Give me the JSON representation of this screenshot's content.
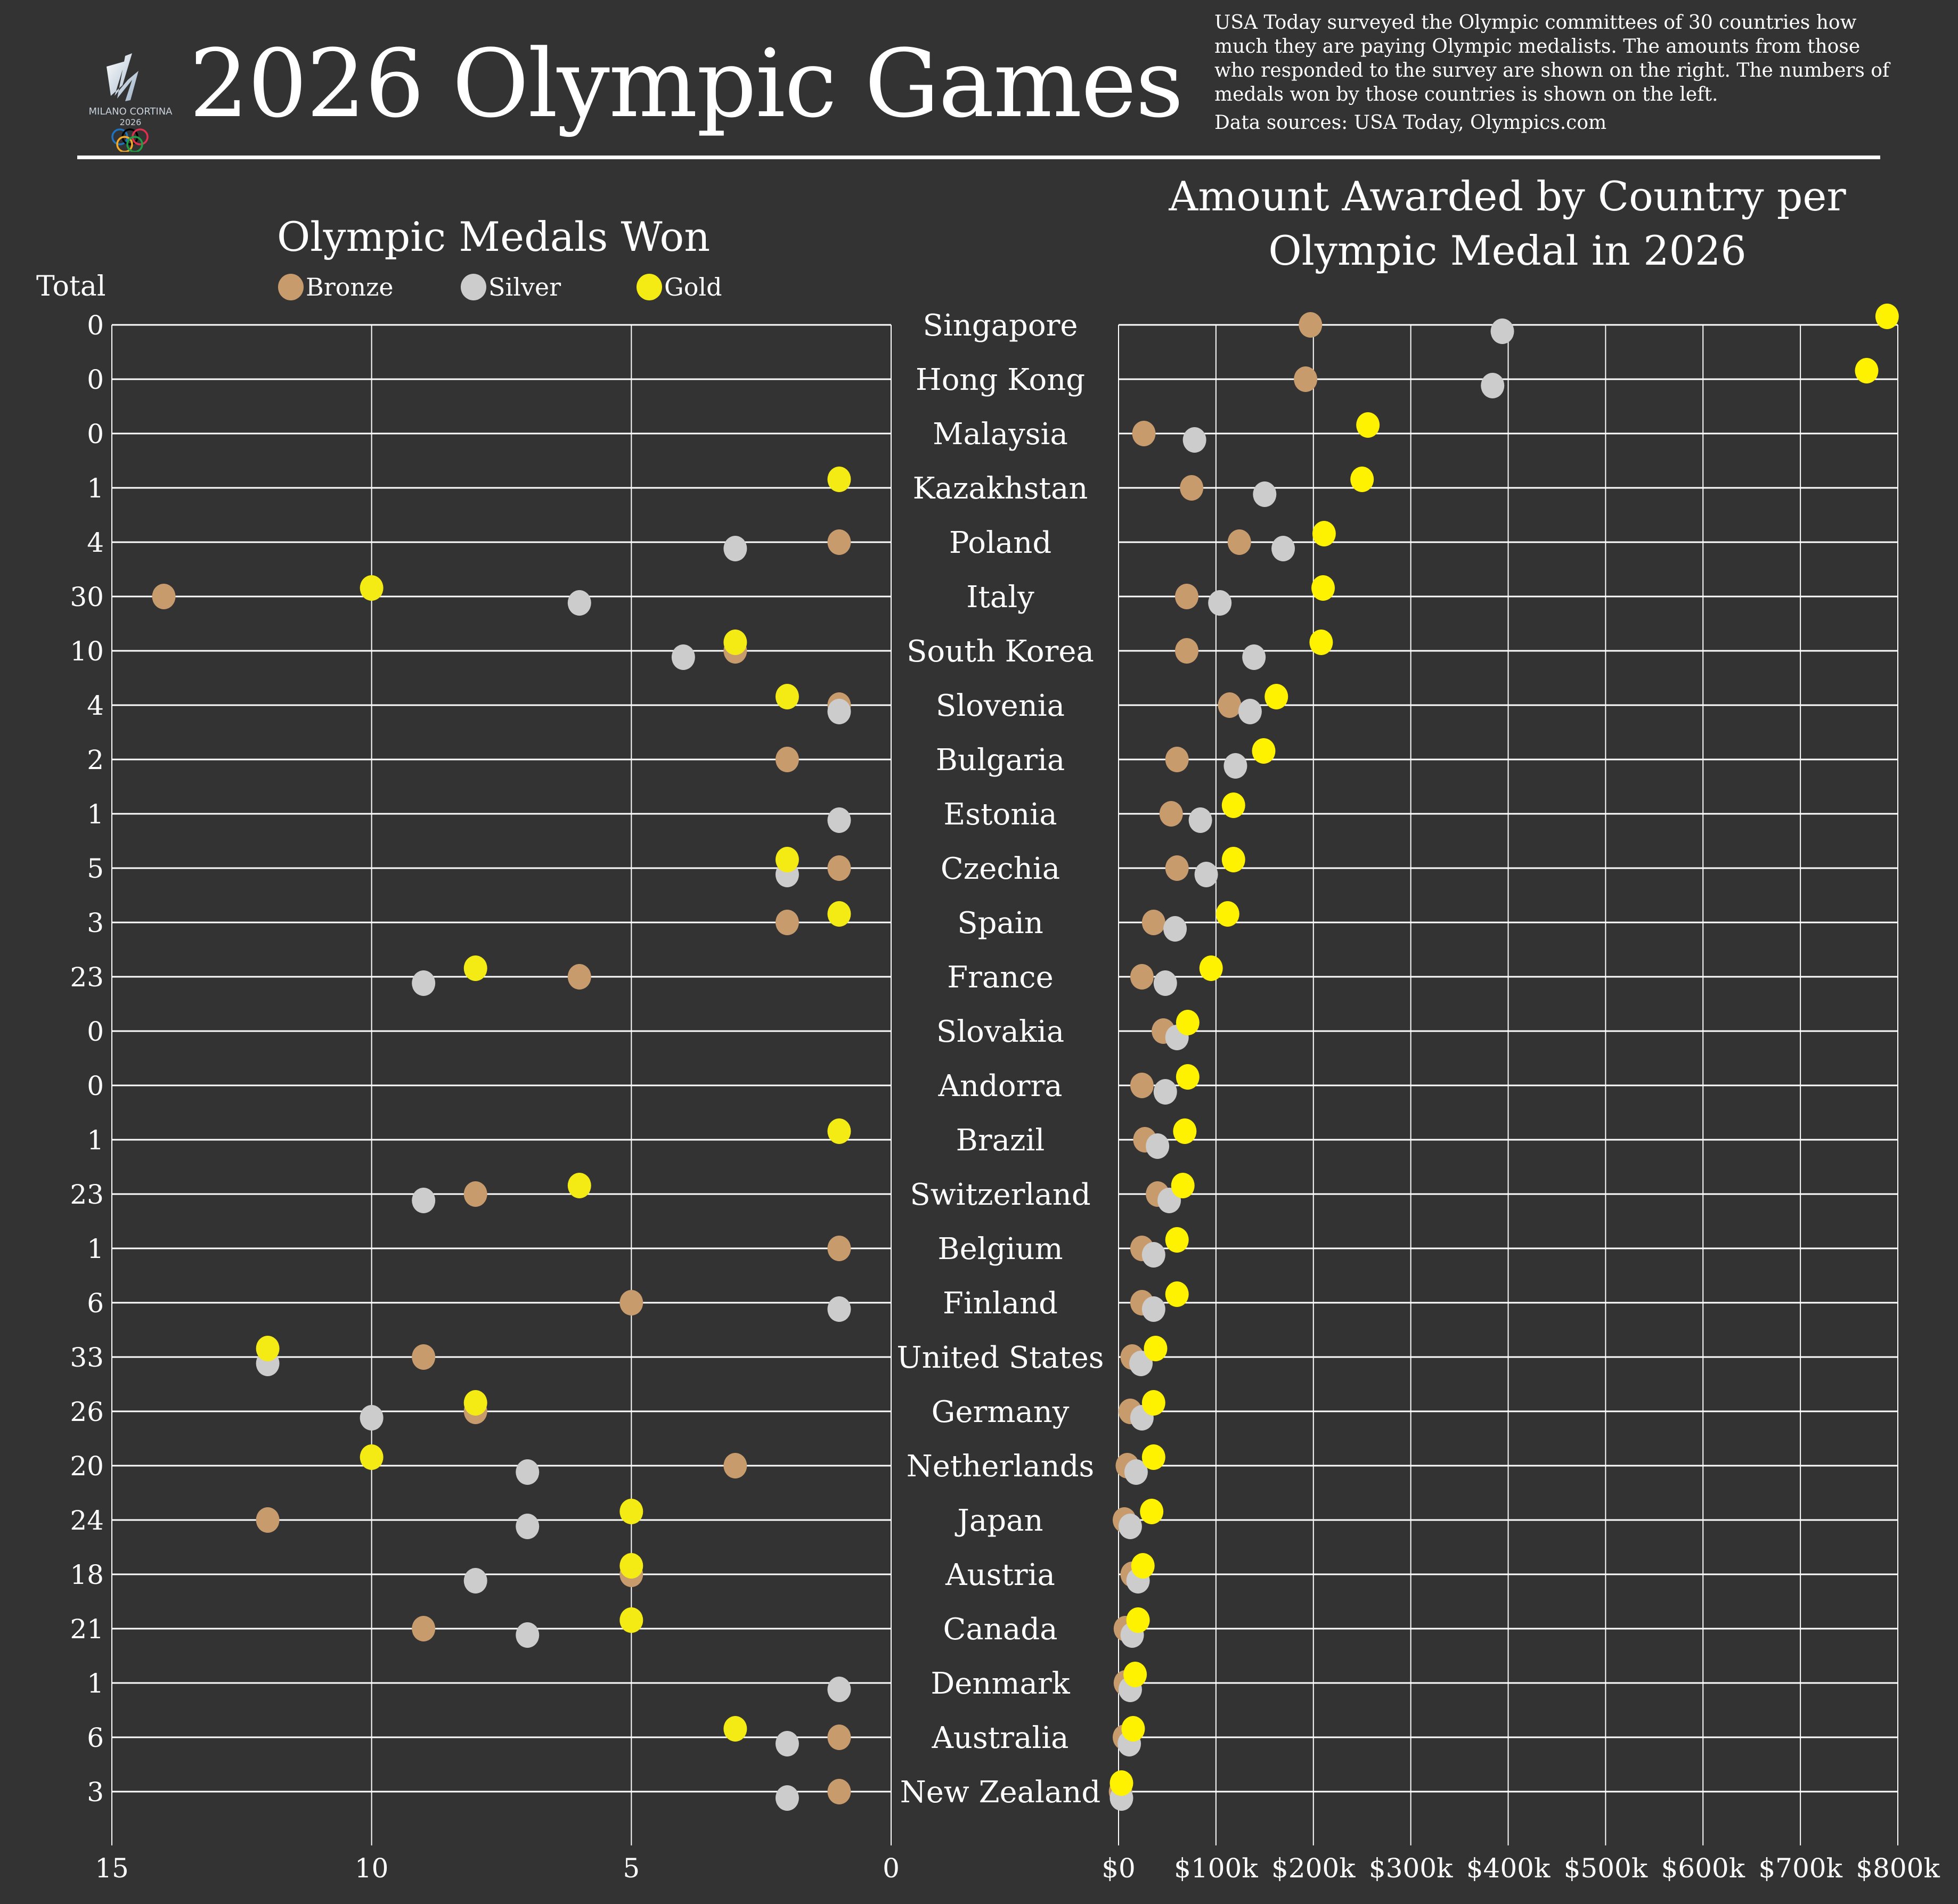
{
  "header": {
    "title": "2026 Olympic Games",
    "logo": {
      "text_line1": "MILANO CORTINA",
      "text_line2": "2026",
      "rings_colors": [
        "#1e73be",
        "#000000",
        "#e0304e",
        "#f7a823",
        "#1da045"
      ]
    },
    "description": "USA Today surveyed the Olympic committees of 30 countries how much they are paying Olympic medalists. The amounts from those who responded to the survey are shown on the right. The numbers of medals won by those countries is shown on the left.",
    "source": "Data sources: USA Today, Olympics.com"
  },
  "colors": {
    "background": "#333333",
    "bronze": "#c89b6d",
    "silver": "#cccccc",
    "gold": "#f5eb14",
    "gold_right": "#fff200",
    "grid": "#ffffff"
  },
  "legend": {
    "total_label": "Total",
    "items": [
      {
        "label": "Bronze",
        "color": "#c89b6d"
      },
      {
        "label": "Silver",
        "color": "#cccccc"
      },
      {
        "label": "Gold",
        "color": "#f5eb14"
      }
    ]
  },
  "chart_data": [
    {
      "type": "scatter",
      "title": "Olympic Medals Won",
      "xlabel": "",
      "ylabel": "Total",
      "x_reversed": true,
      "xlim": [
        15,
        0
      ],
      "xticks": [
        "15",
        "10",
        "5",
        "0"
      ],
      "grid": true,
      "legend_position": "top",
      "categories": [
        "Singapore",
        "Hong Kong",
        "Malaysia",
        "Kazakhstan",
        "Poland",
        "Italy",
        "South Korea",
        "Slovenia",
        "Bulgaria",
        "Estonia",
        "Czechia",
        "Spain",
        "France",
        "Slovakia",
        "Andorra",
        "Brazil",
        "Switzerland",
        "Belgium",
        "Finland",
        "United States",
        "Germany",
        "Netherlands",
        "Japan",
        "Austria",
        "Canada",
        "Denmark",
        "Australia",
        "New Zealand"
      ],
      "totals": [
        0,
        0,
        0,
        1,
        4,
        30,
        10,
        4,
        2,
        1,
        5,
        3,
        23,
        0,
        0,
        1,
        23,
        1,
        6,
        33,
        26,
        20,
        24,
        18,
        21,
        1,
        6,
        3
      ],
      "series": [
        {
          "name": "Bronze",
          "values": [
            0,
            0,
            0,
            0,
            1,
            14,
            3,
            1,
            2,
            0,
            1,
            2,
            6,
            0,
            0,
            0,
            8,
            1,
            5,
            9,
            8,
            3,
            12,
            5,
            9,
            0,
            1,
            1
          ]
        },
        {
          "name": "Silver",
          "values": [
            0,
            0,
            0,
            0,
            3,
            6,
            4,
            1,
            0,
            1,
            2,
            0,
            9,
            0,
            0,
            0,
            9,
            0,
            1,
            12,
            10,
            7,
            7,
            8,
            7,
            1,
            2,
            2
          ]
        },
        {
          "name": "Gold",
          "values": [
            0,
            0,
            0,
            1,
            0,
            10,
            3,
            2,
            0,
            0,
            2,
            1,
            8,
            0,
            0,
            1,
            6,
            0,
            0,
            12,
            8,
            10,
            5,
            5,
            5,
            0,
            3,
            0
          ]
        }
      ]
    },
    {
      "type": "scatter",
      "title": "Amount Awarded by Country per Olympic Medal in 2026",
      "xlabel": "",
      "ylabel": "",
      "xlim": [
        0,
        800000
      ],
      "xticks": [
        "$0",
        "$100k",
        "$200k",
        "$300k",
        "$400k",
        "$500k",
        "$600k",
        "$700k",
        "$800k"
      ],
      "grid": true,
      "categories": [
        "Singapore",
        "Hong Kong",
        "Malaysia",
        "Kazakhstan",
        "Poland",
        "Italy",
        "South Korea",
        "Slovenia",
        "Bulgaria",
        "Estonia",
        "Czechia",
        "Spain",
        "France",
        "Slovakia",
        "Andorra",
        "Brazil",
        "Switzerland",
        "Belgium",
        "Finland",
        "United States",
        "Germany",
        "Netherlands",
        "Japan",
        "Austria",
        "Canada",
        "Denmark",
        "Australia",
        "New Zealand"
      ],
      "series": [
        {
          "name": "Bronze",
          "values": [
            197000,
            192000,
            26000,
            75000,
            124000,
            70000,
            70000,
            114000,
            60000,
            54000,
            60000,
            36000,
            24000,
            46000,
            24000,
            27000,
            40000,
            24000,
            24000,
            14000,
            12000,
            9000,
            6000,
            14000,
            7000,
            7000,
            6000,
            2000
          ]
        },
        {
          "name": "Silver",
          "values": [
            394000,
            384000,
            78000,
            150000,
            169000,
            104000,
            139000,
            135000,
            120000,
            84000,
            90000,
            58000,
            48000,
            60000,
            48000,
            40000,
            52000,
            36000,
            36000,
            23000,
            24000,
            18000,
            12000,
            20000,
            14000,
            12000,
            11000,
            3000
          ]
        },
        {
          "name": "Gold",
          "values": [
            789000,
            768000,
            256000,
            250000,
            211000,
            210000,
            208000,
            162000,
            149000,
            118000,
            118000,
            112000,
            95000,
            71000,
            71000,
            68000,
            66000,
            60000,
            60000,
            38000,
            36000,
            36000,
            34000,
            25000,
            20000,
            17000,
            15000,
            3000
          ]
        }
      ]
    }
  ]
}
